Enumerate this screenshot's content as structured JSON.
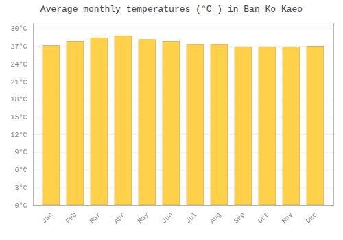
{
  "chart_data": {
    "type": "bar",
    "title": "Average monthly temperatures (°C ) in Ban Ko Kaeo",
    "categories": [
      "Jan",
      "Feb",
      "Mar",
      "Apr",
      "May",
      "Jun",
      "Jul",
      "Aug",
      "Sep",
      "Oct",
      "Nov",
      "Dec"
    ],
    "values": [
      27.1,
      27.8,
      28.4,
      28.7,
      28.1,
      27.8,
      27.3,
      27.3,
      26.9,
      26.9,
      26.9,
      27.0
    ],
    "color": "#FFD04A",
    "ylim": [
      0,
      31
    ],
    "yticks": [
      {
        "value": 0,
        "label": "0°C"
      },
      {
        "value": 3,
        "label": "3°C"
      },
      {
        "value": 6,
        "label": "6°C"
      },
      {
        "value": 9,
        "label": "9°C"
      },
      {
        "value": 12,
        "label": "12°C"
      },
      {
        "value": 15,
        "label": "15°C"
      },
      {
        "value": 18,
        "label": "18°C"
      },
      {
        "value": 21,
        "label": "21°C"
      },
      {
        "value": 24,
        "label": "24°C"
      },
      {
        "value": 27,
        "label": "27°C"
      },
      {
        "value": 30,
        "label": "30°C"
      }
    ],
    "grid": true
  }
}
